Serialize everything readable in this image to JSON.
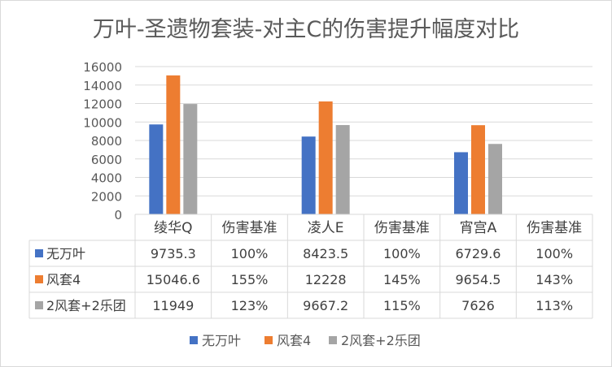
{
  "chart_data": {
    "type": "bar",
    "title": "万叶-圣遗物套装-对主C的伤害提升幅度对比",
    "categories": [
      "绫华Q",
      "伤害基准",
      "凌人E",
      "伤害基准",
      "宵宫A",
      "伤害基准"
    ],
    "series": [
      {
        "name": "无万叶",
        "color": "#4472c4",
        "values": [
          9735.3,
          null,
          8423.5,
          null,
          6729.6,
          null
        ],
        "table": [
          "9735.3",
          "100%",
          "8423.5",
          "100%",
          "6729.6",
          "100%"
        ]
      },
      {
        "name": "风套4",
        "color": "#ed7d31",
        "values": [
          15046.6,
          null,
          12228,
          null,
          9654.5,
          null
        ],
        "table": [
          "15046.6",
          "155%",
          "12228",
          "145%",
          "9654.5",
          "143%"
        ]
      },
      {
        "name": "2风套+2乐团",
        "color": "#a5a5a5",
        "values": [
          11949,
          null,
          9667.2,
          null,
          7626,
          null
        ],
        "table": [
          "11949",
          "123%",
          "9667.2",
          "115%",
          "7626",
          "113%"
        ]
      }
    ],
    "ylim": [
      0,
      16000
    ],
    "yticks": [
      "0",
      "2000",
      "4000",
      "6000",
      "8000",
      "10000",
      "12000",
      "14000",
      "16000"
    ],
    "grid": true,
    "legend_position": "bottom",
    "data_table": true
  }
}
